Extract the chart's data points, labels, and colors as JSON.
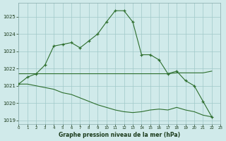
{
  "title": "Graphe pression niveau de la mer (hPa)",
  "bg_color": "#d0eaea",
  "grid_color": "#a0c8c8",
  "line_color": "#2d6e2d",
  "xlim": [
    0,
    23
  ],
  "ylim": [
    1018.8,
    1025.8
  ],
  "yticks": [
    1019,
    1020,
    1021,
    1022,
    1023,
    1024,
    1025
  ],
  "xticks": [
    0,
    1,
    2,
    3,
    4,
    5,
    6,
    7,
    8,
    9,
    10,
    11,
    12,
    13,
    14,
    15,
    16,
    17,
    18,
    19,
    20,
    21,
    22,
    23
  ],
  "curve_main_x": [
    0,
    1,
    2,
    3,
    4,
    5,
    6,
    7,
    8,
    9,
    10,
    11,
    12,
    13,
    14,
    15,
    16,
    17,
    18,
    19,
    20,
    21,
    22
  ],
  "curve_main_y": [
    1021.1,
    1021.5,
    1021.7,
    1022.2,
    1023.3,
    1023.4,
    1023.5,
    1023.2,
    1023.6,
    1024.0,
    1024.7,
    1025.35,
    1025.35,
    1024.7,
    1022.8,
    1022.8,
    1022.5,
    1021.7,
    1021.85,
    1021.3,
    1021.0,
    1020.1,
    1019.2
  ],
  "curve_flat_x": [
    0,
    1,
    2,
    3,
    4,
    5,
    6,
    7,
    8,
    9,
    10,
    11,
    12,
    13,
    14,
    15,
    16,
    17,
    18,
    19,
    20,
    21,
    22
  ],
  "curve_flat_y": [
    1021.7,
    1021.7,
    1021.7,
    1021.7,
    1021.7,
    1021.7,
    1021.7,
    1021.7,
    1021.7,
    1021.7,
    1021.7,
    1021.7,
    1021.7,
    1021.7,
    1021.7,
    1021.7,
    1021.7,
    1021.7,
    1021.75,
    1021.75,
    1021.75,
    1021.75,
    1021.85
  ],
  "curve_diag_x": [
    0,
    1,
    2,
    3,
    4,
    5,
    6,
    7,
    8,
    9,
    10,
    11,
    12,
    13,
    14,
    15,
    16,
    17,
    18,
    19,
    20,
    21,
    22
  ],
  "curve_diag_y": [
    1021.1,
    1021.1,
    1021.0,
    1020.9,
    1020.8,
    1020.6,
    1020.5,
    1020.3,
    1020.1,
    1019.9,
    1019.75,
    1019.6,
    1019.5,
    1019.45,
    1019.5,
    1019.6,
    1019.65,
    1019.6,
    1019.75,
    1019.6,
    1019.5,
    1019.3,
    1019.2
  ]
}
